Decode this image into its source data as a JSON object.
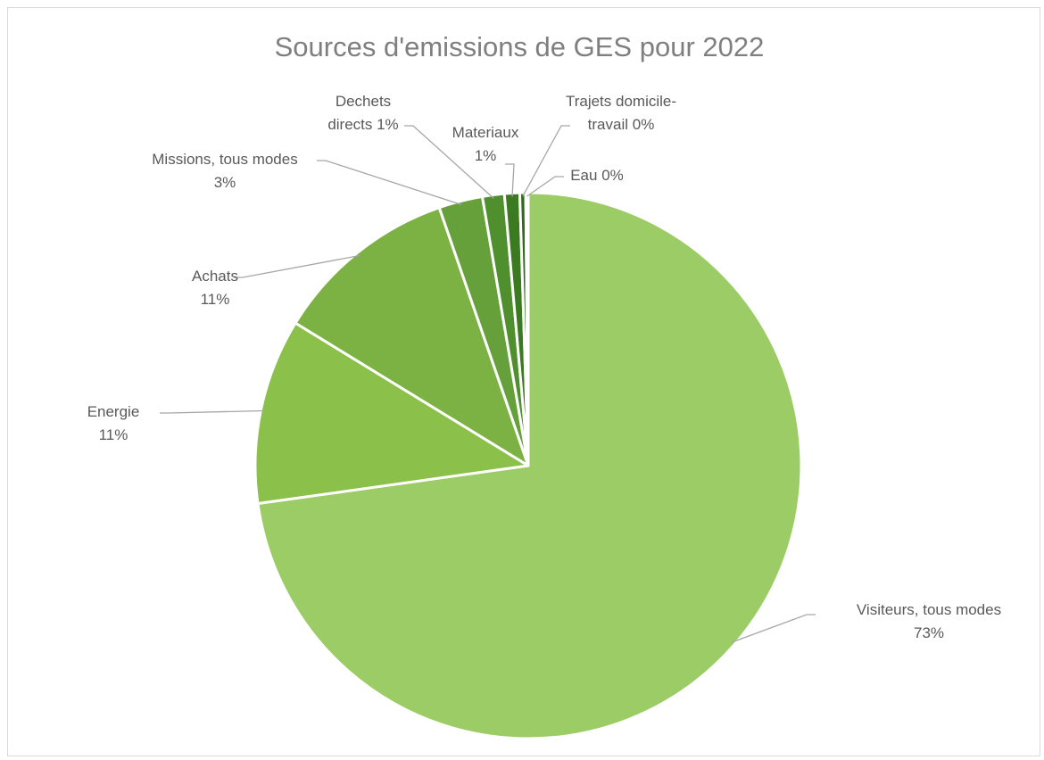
{
  "chart_data": {
    "type": "pie",
    "title": "Sources d'emissions de GES pour 2022",
    "slices": [
      {
        "label": "Visiteurs, tous modes",
        "value": 73,
        "percent_label": "73%",
        "color": "#9ccc65"
      },
      {
        "label": "Energie",
        "value": 11,
        "percent_label": "11%",
        "color": "#8bc04a"
      },
      {
        "label": "Achats",
        "value": 11,
        "percent_label": "11%",
        "color": "#7cb243"
      },
      {
        "label": "Missions, tous modes",
        "value": 2.6,
        "percent_label": "3%",
        "color": "#65a03a"
      },
      {
        "label": "Dechets directs",
        "value": 1.3,
        "percent_label": "1%",
        "color": "#4f8f2e"
      },
      {
        "label": "Materiaux",
        "value": 0.9,
        "percent_label": "1%",
        "color": "#3c7a22"
      },
      {
        "label": "Trajets domicile-travail",
        "value": 0.35,
        "percent_label": "0%",
        "color": "#2f6a1a"
      },
      {
        "label": "Eau",
        "value": 0.15,
        "percent_label": "0%",
        "color": "#9ccc65"
      }
    ],
    "legend": "none",
    "start_angle_deg": 0,
    "direction": "clockwise"
  }
}
